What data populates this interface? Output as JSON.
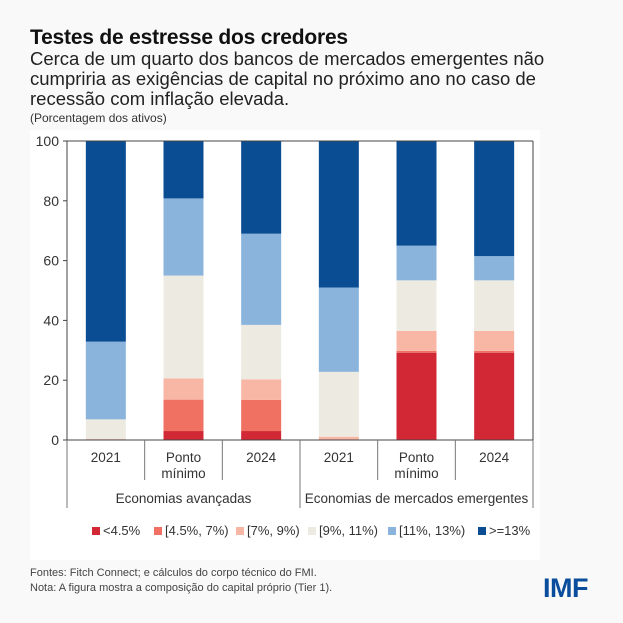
{
  "header": {
    "title": "Testes de estresse dos credores",
    "subtitle": "Cerca de um quarto dos bancos de mercados emergentes não cumpriria as exigências de capital no próximo ano no caso de recessão com inflação elevada.",
    "unit": "(Porcentagem dos ativos)"
  },
  "chart_data": {
    "type": "bar",
    "stacked": true,
    "title": "Testes de estresse dos credores",
    "ylabel": "(Porcentagem dos ativos)",
    "ylim": [
      0,
      100
    ],
    "yticks": [
      0,
      20,
      40,
      60,
      80,
      100
    ],
    "grid": false,
    "legend_position": "bottom",
    "categories": [
      "2021",
      "Ponto mínimo",
      "2024",
      "2021",
      "Ponto mínimo",
      "2024"
    ],
    "category_lines": [
      [
        "2021"
      ],
      [
        "Ponto",
        "mínimo"
      ],
      [
        "2024"
      ],
      [
        "2021"
      ],
      [
        "Ponto",
        "mínimo"
      ],
      [
        "2024"
      ]
    ],
    "groups": [
      {
        "label": "Economias avançadas",
        "categories": [
          0,
          1,
          2
        ]
      },
      {
        "label": "Economias de mercados emergentes",
        "categories": [
          3,
          4,
          5
        ]
      }
    ],
    "series": [
      {
        "name": "<4.5%",
        "color": "#d22836",
        "values": [
          0,
          3.0,
          3.0,
          0,
          29.2,
          29.2
        ]
      },
      {
        "name": "[4.5%, 7%)",
        "color": "#f07161",
        "values": [
          0,
          10.5,
          10.4,
          0,
          0.6,
          0.6
        ]
      },
      {
        "name": "[7%, 9%)",
        "color": "#f8b6a4",
        "values": [
          0.3,
          7.1,
          6.9,
          1.1,
          6.7,
          6.7
        ]
      },
      {
        "name": "[9%, 11%)",
        "color": "#edebe1",
        "values": [
          6.6,
          34.4,
          18.2,
          21.7,
          16.9,
          16.9
        ]
      },
      {
        "name": "[11%, 13%)",
        "color": "#8ab4dc",
        "values": [
          26.0,
          25.8,
          30.5,
          28.2,
          11.6,
          8.1
        ]
      },
      {
        "name": ">=13%",
        "color": "#0b4d93",
        "values": [
          67.1,
          19.2,
          31.0,
          49.0,
          35.0,
          38.5
        ]
      }
    ]
  },
  "footer": {
    "sources": "Fontes: Fitch Connect; e cálculos do corpo técnico do FMI.",
    "note": "Nota: A figura mostra a composição do capital próprio (Tier 1).",
    "logo": "IMF"
  }
}
